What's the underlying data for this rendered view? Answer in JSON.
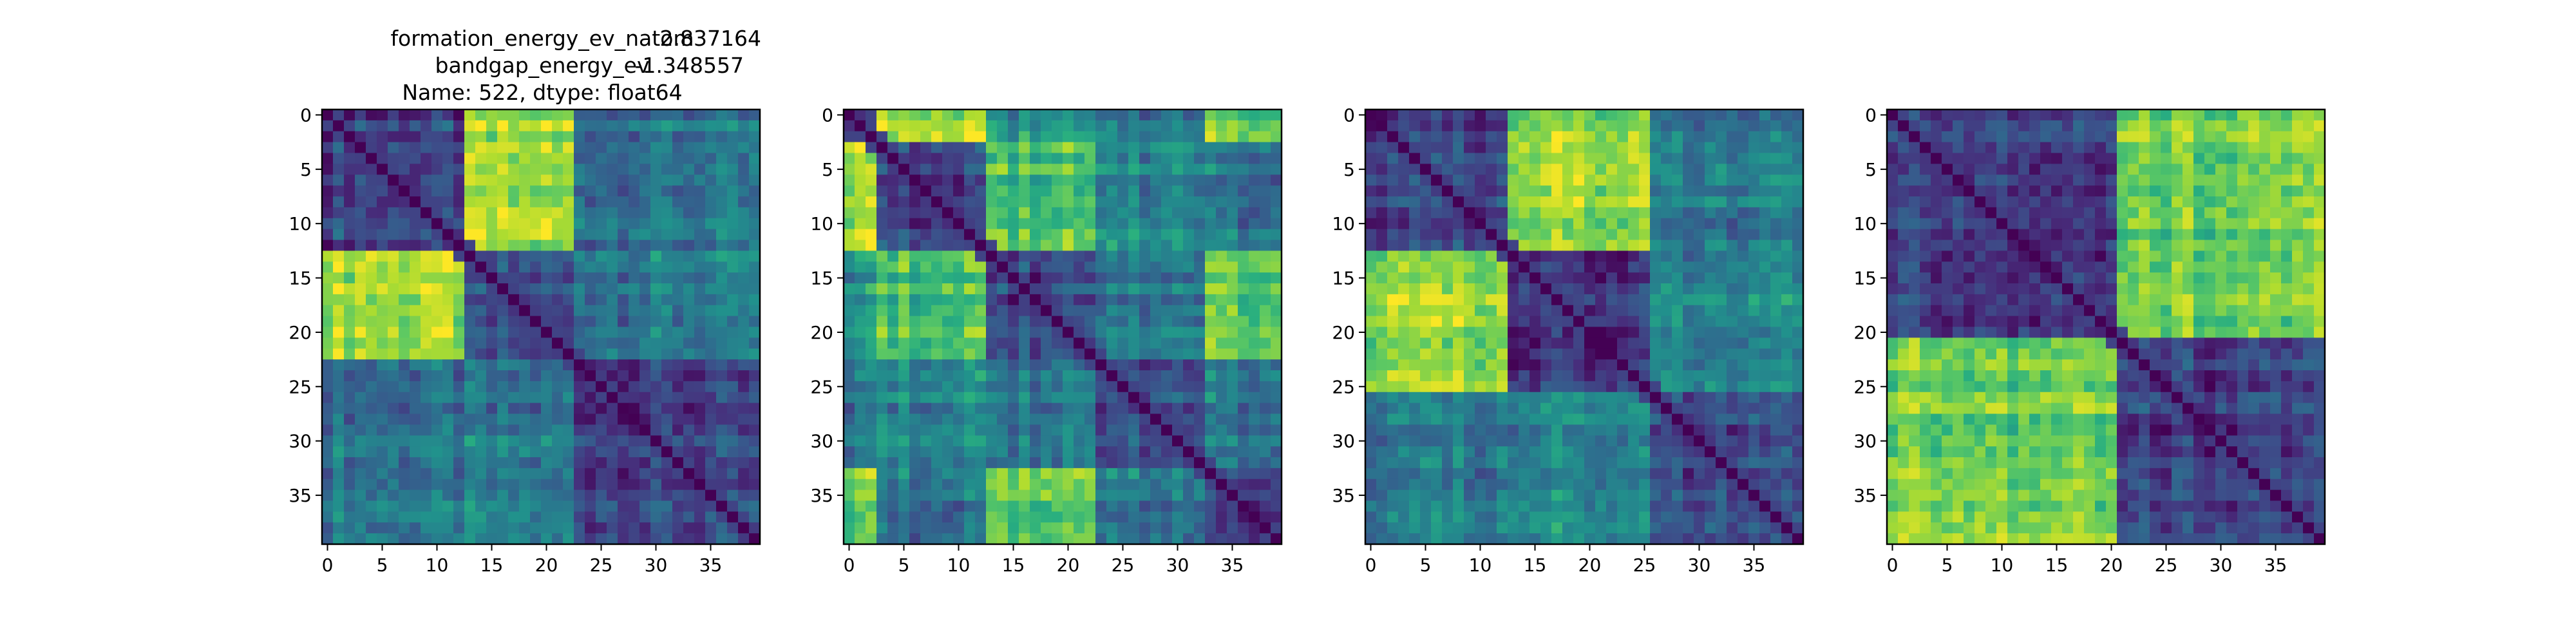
{
  "figure_title": {
    "line1_key": "formation_energy_ev_natom",
    "line1_val": "2.837164",
    "line2_key": "bandgap_energy_ev",
    "line2_val": "-1.348557",
    "line3": "Name: 522, dtype: float64"
  },
  "colormap": [
    "#440154",
    "#472d7b",
    "#3b528b",
    "#2c728e",
    "#21918c",
    "#28ae80",
    "#5ec962",
    "#addc30",
    "#fde725"
  ],
  "chart_data": [
    {
      "type": "heatmap",
      "size": 40,
      "xticks": [
        "0",
        "5",
        "10",
        "15",
        "20",
        "25",
        "30",
        "35"
      ],
      "yticks": [
        "0",
        "5",
        "10",
        "15",
        "20",
        "25",
        "30",
        "35"
      ],
      "blocks": [
        [
          0,
          12
        ],
        [
          13,
          22
        ],
        [
          23,
          39
        ]
      ],
      "base_level": 0.3,
      "bright_pairs": [
        [
          0,
          1,
          0.85
        ]
      ]
    },
    {
      "type": "heatmap",
      "size": 40,
      "xticks": [
        "0",
        "5",
        "10",
        "15",
        "20",
        "25",
        "30",
        "35"
      ],
      "yticks": [
        "0",
        "5",
        "10",
        "15",
        "20",
        "25",
        "30",
        "35"
      ],
      "blocks": [
        [
          0,
          2
        ],
        [
          3,
          12
        ],
        [
          13,
          22
        ],
        [
          23,
          32
        ],
        [
          33,
          39
        ]
      ],
      "base_level": 0.3,
      "bright_pairs": [
        [
          0,
          1,
          0.85
        ],
        [
          0,
          4,
          0.75
        ],
        [
          1,
          2,
          0.7
        ],
        [
          2,
          4,
          0.75
        ],
        [
          0,
          2,
          0.5
        ],
        [
          1,
          3,
          0.45
        ]
      ]
    },
    {
      "type": "heatmap",
      "size": 40,
      "xticks": [
        "0",
        "5",
        "10",
        "15",
        "20",
        "25",
        "30",
        "35"
      ],
      "yticks": [
        "0",
        "5",
        "10",
        "15",
        "20",
        "25",
        "30",
        "35"
      ],
      "blocks": [
        [
          0,
          12
        ],
        [
          13,
          25
        ],
        [
          26,
          39
        ]
      ],
      "base_level": 0.3,
      "bright_pairs": [
        [
          0,
          1,
          0.85
        ],
        [
          1,
          2,
          0.45
        ]
      ]
    },
    {
      "type": "heatmap",
      "size": 40,
      "xticks": [
        "0",
        "5",
        "10",
        "15",
        "20",
        "25",
        "30",
        "35"
      ],
      "yticks": [
        "0",
        "5",
        "10",
        "15",
        "20",
        "25",
        "30",
        "35"
      ],
      "blocks": [
        [
          0,
          20
        ],
        [
          21,
          39
        ]
      ],
      "base_level": 0.3,
      "bright_pairs": [
        [
          0,
          1,
          0.8
        ]
      ]
    }
  ]
}
